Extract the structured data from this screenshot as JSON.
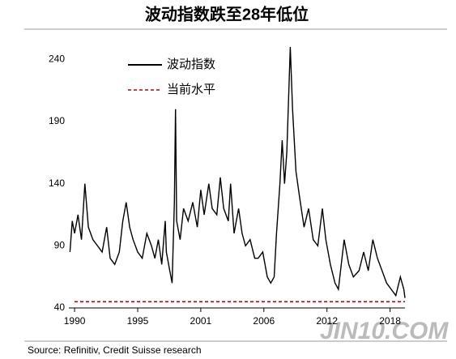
{
  "chart_data": {
    "type": "line",
    "title": "波动指数跌至28年低位",
    "source": "Source: Refinitiv, Credit Suisse research",
    "watermark": "JIN10.COM",
    "x": [
      1989.6,
      1989.8,
      1990.0,
      1990.3,
      1990.6,
      1990.9,
      1991.2,
      1991.6,
      1992.0,
      1992.4,
      1992.8,
      1993.1,
      1993.5,
      1993.9,
      1994.2,
      1994.5,
      1994.8,
      1995.1,
      1995.5,
      1995.9,
      1996.3,
      1996.7,
      1997.0,
      1997.3,
      1997.6,
      1997.9,
      1998.0,
      1998.3,
      1998.5,
      1998.7,
      1998.8,
      1998.9,
      1999.2,
      1999.5,
      1999.9,
      2000.3,
      2000.7,
      2001.0,
      2001.3,
      2001.7,
      2002.0,
      2002.4,
      2002.7,
      2003.0,
      2003.4,
      2003.6,
      2003.9,
      2004.3,
      2004.6,
      2004.9,
      2005.3,
      2005.7,
      2006.0,
      2006.4,
      2006.8,
      2007.1,
      2007.4,
      2007.6,
      2007.9,
      2008.1,
      2008.3,
      2008.5,
      2008.8,
      2009.0,
      2009.3,
      2009.6,
      2010.0,
      2010.4,
      2010.8,
      2011.2,
      2011.6,
      2011.9,
      2012.3,
      2012.7,
      2013.0,
      2013.5,
      2013.9,
      2014.3,
      2014.8,
      2015.2,
      2015.6,
      2016.0,
      2016.4,
      2016.8,
      2017.2,
      2017.6,
      2018.0,
      2018.4,
      2018.7,
      2018.8
    ],
    "series": [
      {
        "name": "波动指数",
        "color": "#000000",
        "values": [
          85,
          110,
          100,
          115,
          95,
          140,
          105,
          95,
          90,
          85,
          105,
          80,
          75,
          85,
          110,
          125,
          105,
          95,
          85,
          80,
          100,
          90,
          80,
          95,
          75,
          110,
          85,
          70,
          60,
          125,
          200,
          110,
          95,
          120,
          110,
          125,
          105,
          135,
          115,
          140,
          120,
          115,
          145,
          120,
          110,
          140,
          100,
          120,
          100,
          90,
          95,
          80,
          80,
          85,
          65,
          60,
          65,
          100,
          140,
          175,
          140,
          165,
          250,
          200,
          150,
          130,
          105,
          120,
          95,
          90,
          120,
          95,
          75,
          60,
          55,
          95,
          75,
          65,
          70,
          85,
          70,
          95,
          80,
          70,
          60,
          55,
          50,
          65,
          55,
          48
        ]
      }
    ],
    "hline": {
      "name": "当前水平",
      "color": "#c00000",
      "value": 45,
      "dashed": true
    },
    "xlim": [
      1989.5,
      2018.8
    ],
    "xticks": [
      1990,
      {
        "value": 1995.5,
        "label": "1995"
      },
      2001,
      {
        "value": 2006.5,
        "label": "2006"
      },
      2012,
      {
        "value": 2017.5,
        "label": "2018"
      }
    ],
    "ylim": [
      40,
      250
    ],
    "yticks": [
      40,
      90,
      140,
      190,
      240
    ],
    "grid": false
  }
}
